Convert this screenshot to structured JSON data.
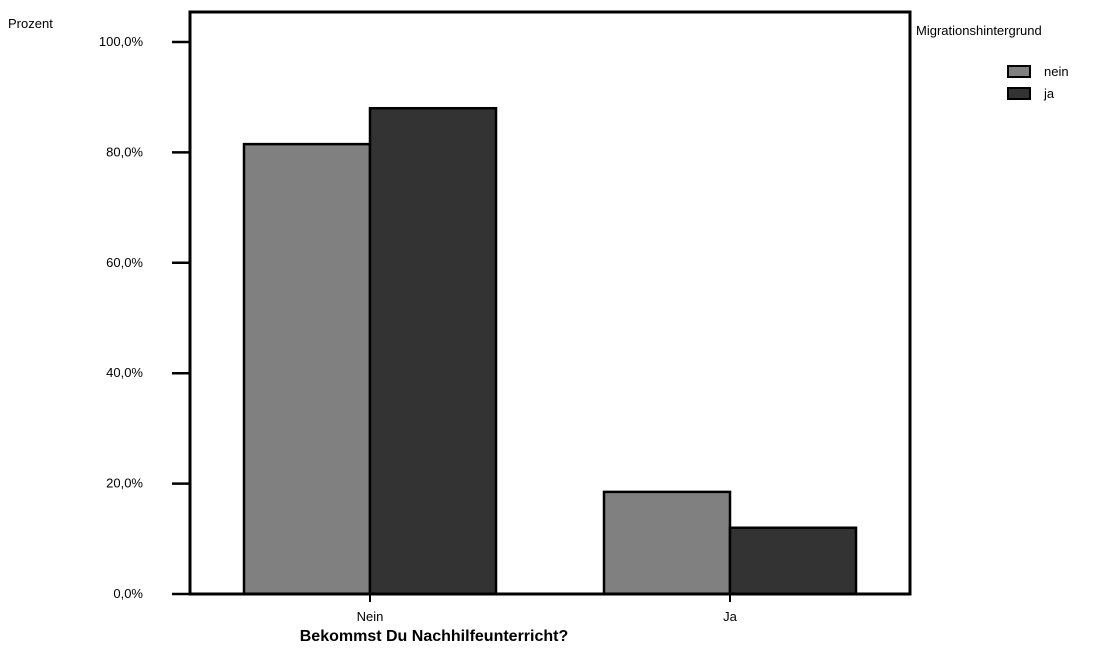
{
  "chart_data": {
    "type": "bar",
    "title": "",
    "xlabel": "Bekommst Du Nachhilfeunterricht?",
    "ylabel": "Prozent",
    "categories": [
      "Nein",
      "Ja"
    ],
    "series": [
      {
        "name": "nein",
        "color": "#808080",
        "values": [
          81.5,
          18.5
        ]
      },
      {
        "name": "ja",
        "color": "#333333",
        "values": [
          88.0,
          12.0
        ]
      }
    ],
    "ylim": [
      0,
      100
    ],
    "yticks": [
      0,
      20,
      40,
      60,
      80,
      100
    ],
    "ytick_labels": [
      "0,0%",
      "20,0%",
      "40,0%",
      "60,0%",
      "80,0%",
      "100,0%"
    ],
    "legend": {
      "title": "Migrationshintergrund",
      "position": "top-right"
    },
    "grid": false
  }
}
